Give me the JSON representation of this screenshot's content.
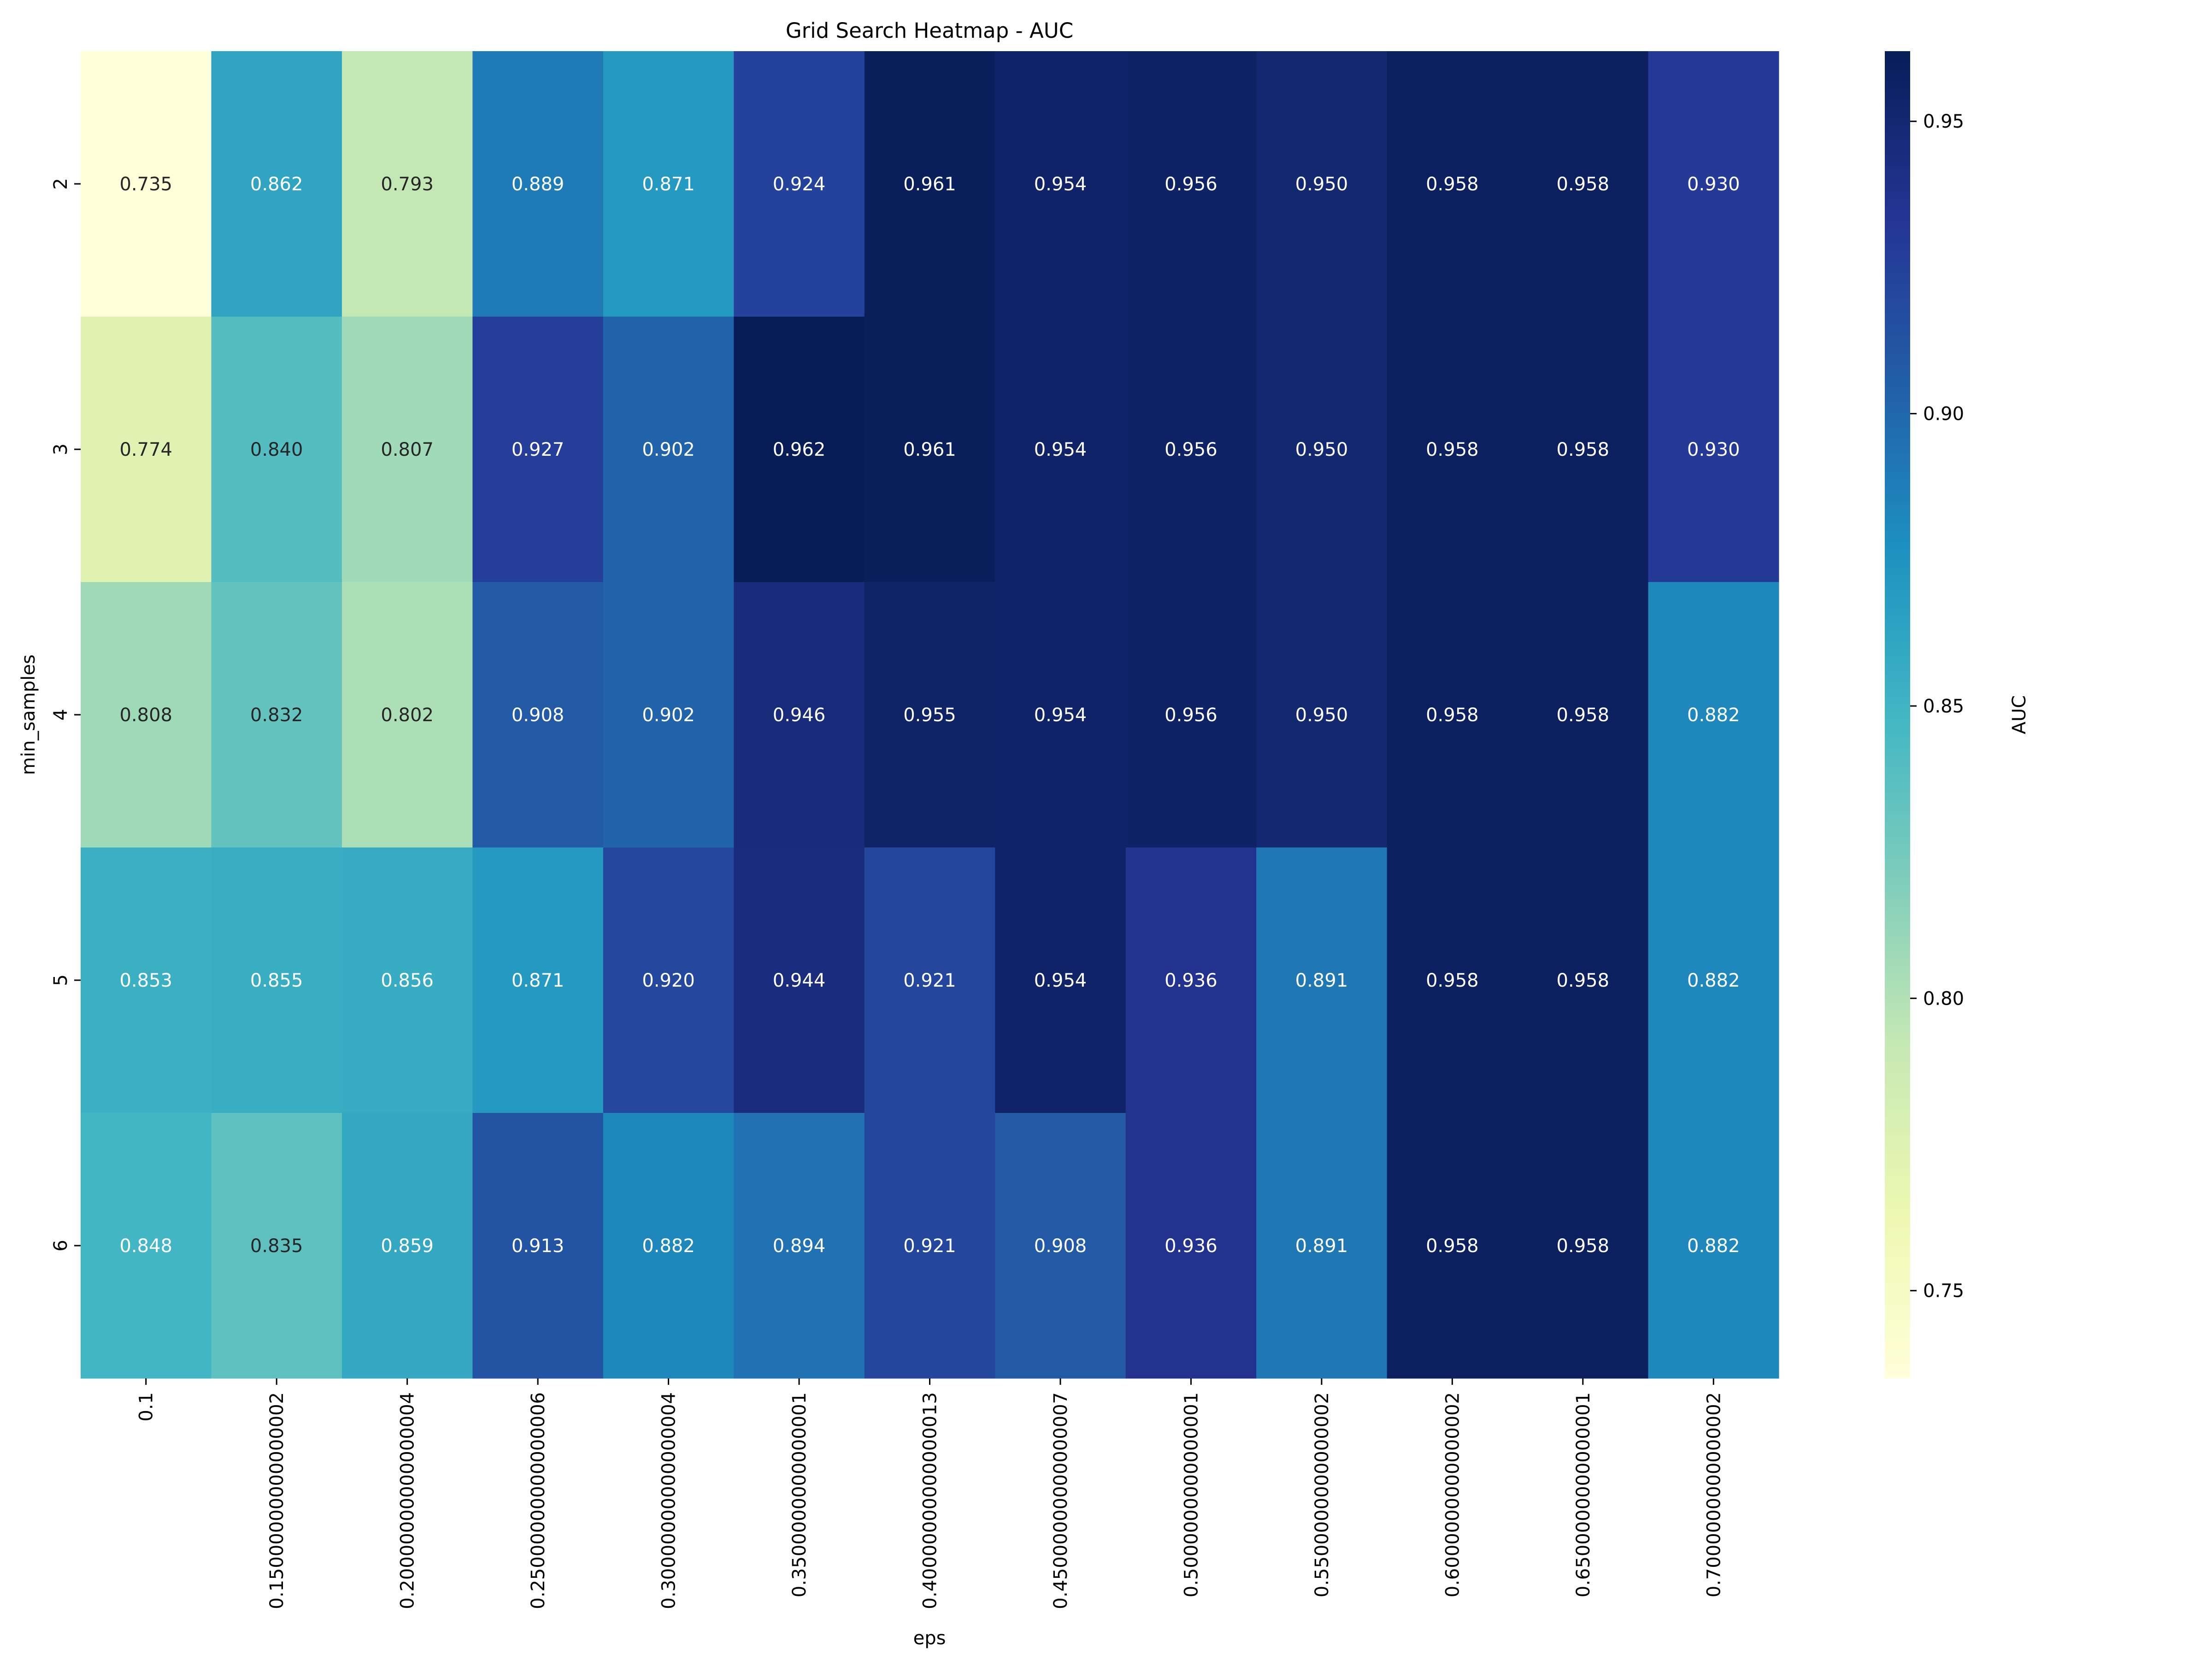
{
  "chart_data": {
    "type": "heatmap",
    "title": "Grid Search Heatmap - AUC",
    "xlabel": "eps",
    "ylabel": "min_samples",
    "x_categories": [
      "0.1",
      "0.15000000000000002",
      "0.20000000000000004",
      "0.25000000000000006",
      "0.30000000000000004",
      "0.3500000000000001",
      "0.40000000000000013",
      "0.45000000000000007",
      "0.5000000000000001",
      "0.5500000000000002",
      "0.6000000000000002",
      "0.6500000000000001",
      "0.7000000000000002"
    ],
    "y_categories": [
      "2",
      "3",
      "4",
      "5",
      "6"
    ],
    "values": [
      [
        0.735,
        0.862,
        0.793,
        0.889,
        0.871,
        0.924,
        0.961,
        0.954,
        0.956,
        0.95,
        0.958,
        0.958,
        0.93
      ],
      [
        0.774,
        0.84,
        0.807,
        0.927,
        0.902,
        0.962,
        0.961,
        0.954,
        0.956,
        0.95,
        0.958,
        0.958,
        0.93
      ],
      [
        0.808,
        0.832,
        0.802,
        0.908,
        0.902,
        0.946,
        0.955,
        0.954,
        0.956,
        0.95,
        0.958,
        0.958,
        0.882
      ],
      [
        0.853,
        0.855,
        0.856,
        0.871,
        0.92,
        0.944,
        0.921,
        0.954,
        0.936,
        0.891,
        0.958,
        0.958,
        0.882
      ],
      [
        0.848,
        0.835,
        0.859,
        0.913,
        0.882,
        0.894,
        0.921,
        0.908,
        0.936,
        0.891,
        0.958,
        0.958,
        0.882
      ]
    ],
    "value_format": "3 decimals",
    "colormap": "YlGnBu",
    "colormap_stops": [
      "#ffffd9",
      "#edf8b1",
      "#c7e9b4",
      "#7fcdbb",
      "#41b6c4",
      "#1d91c0",
      "#225ea8",
      "#253494",
      "#081d58"
    ],
    "color_range": [
      0.735,
      0.962
    ],
    "colorbar": {
      "label": "AUC",
      "ticks": [
        "0.75",
        "0.80",
        "0.85",
        "0.90",
        "0.95"
      ]
    }
  }
}
